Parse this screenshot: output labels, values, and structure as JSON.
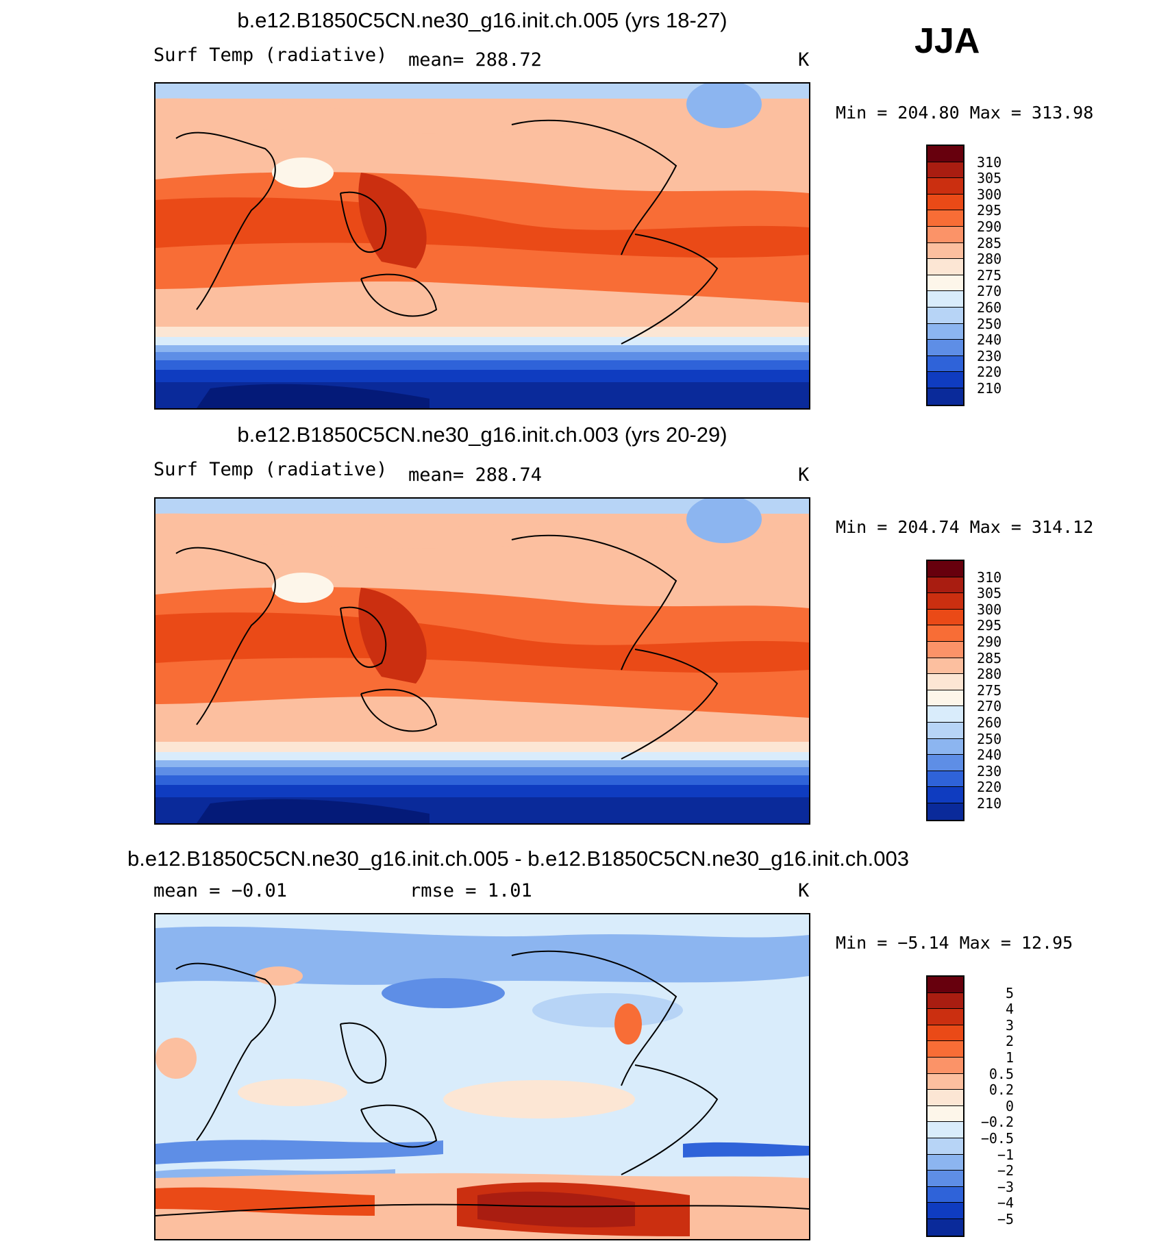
{
  "season": "JJA",
  "panels": [
    {
      "title": "b.e12.B1850C5CN.ne30_g16.init.ch.005 (yrs 18-27)",
      "left_label": "Surf Temp (radiative)",
      "center_label": "mean= 288.72",
      "right_label": "K",
      "minmax": "Min = 204.80 Max = 313.98",
      "colorbar_labels": [
        "310",
        "305",
        "300",
        "295",
        "290",
        "285",
        "280",
        "275",
        "270",
        "260",
        "250",
        "240",
        "230",
        "220",
        "210"
      ]
    },
    {
      "title": "b.e12.B1850C5CN.ne30_g16.init.ch.003 (yrs 20-29)",
      "left_label": "Surf Temp (radiative)",
      "center_label": "mean= 288.74",
      "right_label": "K",
      "minmax": "Min = 204.74 Max = 314.12",
      "colorbar_labels": [
        "310",
        "305",
        "300",
        "295",
        "290",
        "285",
        "280",
        "275",
        "270",
        "260",
        "250",
        "240",
        "230",
        "220",
        "210"
      ]
    },
    {
      "title": "b.e12.B1850C5CN.ne30_g16.init.ch.005 - b.e12.B1850C5CN.ne30_g16.init.ch.003",
      "left_label": "mean =   −0.01",
      "center_label": "rmse =    1.01",
      "right_label": "K",
      "minmax": "Min =  −5.14 Max =  12.95",
      "colorbar_labels": [
        "5",
        "4",
        "3",
        "2",
        "1",
        "0.5",
        "0.2",
        "0",
        "−0.2",
        "−0.5",
        "−1",
        "−2",
        "−3",
        "−4",
        "−5"
      ]
    }
  ],
  "colors": {
    "abs_palette": [
      "#67000d",
      "#a91d11",
      "#cb2f10",
      "#ea4a17",
      "#f86d36",
      "#fb9368",
      "#fcbf9f",
      "#fce6d4",
      "#fdf6ea",
      "#d9ecfb",
      "#b7d4f6",
      "#8cb5f0",
      "#5e8ee6",
      "#2f63d9",
      "#0f3cc0",
      "#0a2a9a",
      "#041a78"
    ],
    "diff_palette": [
      "#67000d",
      "#a91d11",
      "#cb2f10",
      "#ea4a17",
      "#f86d36",
      "#fb9368",
      "#fcbf9f",
      "#fce6d4",
      "#fdf6ea",
      "#d9ecfb",
      "#b7d4f6",
      "#8cb5f0",
      "#5e8ee6",
      "#2f63d9",
      "#0f3cc0",
      "#0a2a9a",
      "#041a78"
    ]
  }
}
